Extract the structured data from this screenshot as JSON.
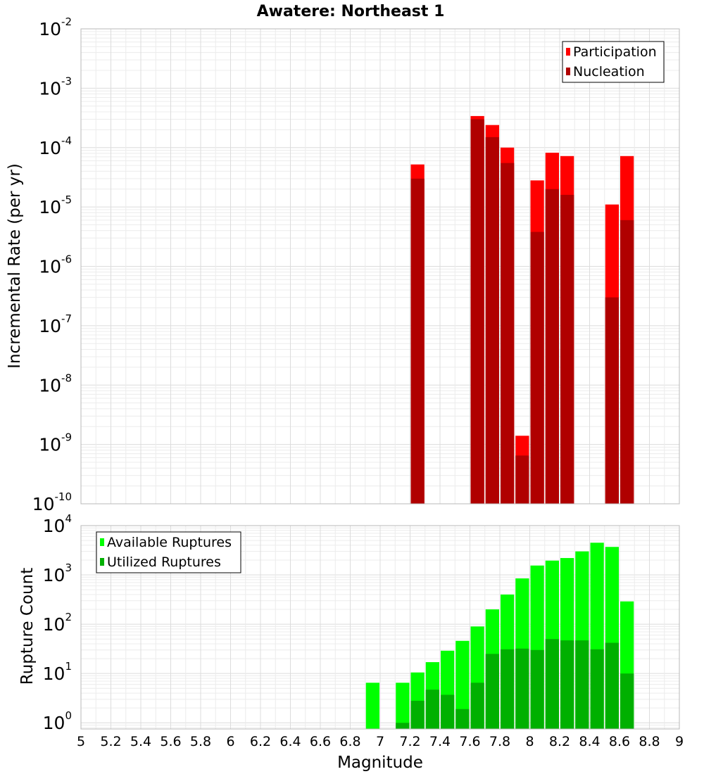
{
  "chart_data": [
    {
      "type": "bar",
      "title": "Awatere: Northeast 1",
      "xlabel": "",
      "ylabel": "Incremental Rate (per yr)",
      "yscale": "log",
      "ylim": [
        1e-10,
        0.01
      ],
      "xlim": [
        5,
        9
      ],
      "bar_width": 0.1,
      "grid": true,
      "legend_position": "top-right",
      "y_ticks": [
        {
          "value": 1e-10,
          "base": "10",
          "exp": "-10"
        },
        {
          "value": 1e-09,
          "base": "10",
          "exp": "-9"
        },
        {
          "value": 1e-08,
          "base": "10",
          "exp": "-8"
        },
        {
          "value": 1e-07,
          "base": "10",
          "exp": "-7"
        },
        {
          "value": 1e-06,
          "base": "10",
          "exp": "-6"
        },
        {
          "value": 1e-05,
          "base": "10",
          "exp": "-5"
        },
        {
          "value": 0.0001,
          "base": "10",
          "exp": "-4"
        },
        {
          "value": 0.001,
          "base": "10",
          "exp": "-3"
        },
        {
          "value": 0.01,
          "base": "10",
          "exp": "-2"
        }
      ],
      "series": [
        {
          "name": "Participation",
          "color": "#ff0000",
          "points": [
            {
              "x": 7.25,
              "y": 5.2e-05
            },
            {
              "x": 7.65,
              "y": 0.00034
            },
            {
              "x": 7.75,
              "y": 0.00024
            },
            {
              "x": 7.85,
              "y": 0.0001
            },
            {
              "x": 7.95,
              "y": 1.4e-09
            },
            {
              "x": 8.05,
              "y": 2.8e-05
            },
            {
              "x": 8.15,
              "y": 8.2e-05
            },
            {
              "x": 8.25,
              "y": 7.2e-05
            },
            {
              "x": 8.55,
              "y": 1.1e-05
            },
            {
              "x": 8.65,
              "y": 7.2e-05
            }
          ]
        },
        {
          "name": "Nucleation",
          "color": "#b00000",
          "points": [
            {
              "x": 7.25,
              "y": 3e-05
            },
            {
              "x": 7.65,
              "y": 0.0003
            },
            {
              "x": 7.75,
              "y": 0.00015
            },
            {
              "x": 7.85,
              "y": 5.5e-05
            },
            {
              "x": 7.95,
              "y": 6.5e-10
            },
            {
              "x": 8.05,
              "y": 3.8e-06
            },
            {
              "x": 8.15,
              "y": 2e-05
            },
            {
              "x": 8.25,
              "y": 1.6e-05
            },
            {
              "x": 8.55,
              "y": 3e-07
            },
            {
              "x": 8.65,
              "y": 6e-06
            }
          ]
        }
      ]
    },
    {
      "type": "bar",
      "title": "",
      "xlabel": "Magnitude",
      "ylabel": "Rupture Count",
      "yscale": "log",
      "ylim": [
        0.75,
        10000
      ],
      "xlim": [
        5,
        9
      ],
      "bar_width": 0.1,
      "grid": true,
      "legend_position": "top-left",
      "x_ticks": [
        "5",
        "5.2",
        "5.4",
        "5.6",
        "5.8",
        "6",
        "6.2",
        "6.4",
        "6.6",
        "6.8",
        "7",
        "7.2",
        "7.4",
        "7.6",
        "7.8",
        "8",
        "8.2",
        "8.4",
        "8.6",
        "8.8",
        "9"
      ],
      "y_ticks": [
        {
          "value": 1,
          "base": "10",
          "exp": "0"
        },
        {
          "value": 10,
          "base": "10",
          "exp": "1"
        },
        {
          "value": 100,
          "base": "10",
          "exp": "2"
        },
        {
          "value": 1000,
          "base": "10",
          "exp": "3"
        },
        {
          "value": 10000,
          "base": "10",
          "exp": "4"
        }
      ],
      "series": [
        {
          "name": "Available Ruptures",
          "color": "#00ff00",
          "points": [
            {
              "x": 6.95,
              "y": 6.5
            },
            {
              "x": 7.15,
              "y": 6.5
            },
            {
              "x": 7.25,
              "y": 10.5
            },
            {
              "x": 7.35,
              "y": 17
            },
            {
              "x": 7.45,
              "y": 29
            },
            {
              "x": 7.55,
              "y": 46
            },
            {
              "x": 7.65,
              "y": 90
            },
            {
              "x": 7.75,
              "y": 200
            },
            {
              "x": 7.85,
              "y": 400
            },
            {
              "x": 7.95,
              "y": 850
            },
            {
              "x": 8.05,
              "y": 1550
            },
            {
              "x": 8.15,
              "y": 1950
            },
            {
              "x": 8.25,
              "y": 2200
            },
            {
              "x": 8.35,
              "y": 3000
            },
            {
              "x": 8.45,
              "y": 4500
            },
            {
              "x": 8.55,
              "y": 3700
            },
            {
              "x": 8.65,
              "y": 290
            }
          ]
        },
        {
          "name": "Utilized Ruptures",
          "color": "#00b000",
          "points": [
            {
              "x": 7.15,
              "y": 1
            },
            {
              "x": 7.25,
              "y": 2.8
            },
            {
              "x": 7.35,
              "y": 4.7
            },
            {
              "x": 7.45,
              "y": 3.7
            },
            {
              "x": 7.55,
              "y": 1.9
            },
            {
              "x": 7.65,
              "y": 6.5
            },
            {
              "x": 7.75,
              "y": 25
            },
            {
              "x": 7.85,
              "y": 31
            },
            {
              "x": 7.95,
              "y": 32
            },
            {
              "x": 8.05,
              "y": 30
            },
            {
              "x": 8.15,
              "y": 50
            },
            {
              "x": 8.25,
              "y": 47
            },
            {
              "x": 8.35,
              "y": 47
            },
            {
              "x": 8.45,
              "y": 31
            },
            {
              "x": 8.55,
              "y": 42
            },
            {
              "x": 8.65,
              "y": 10
            }
          ]
        }
      ]
    }
  ]
}
